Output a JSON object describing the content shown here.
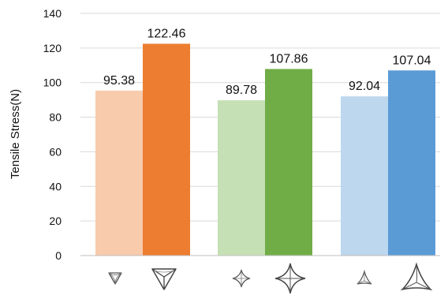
{
  "chart_data": {
    "type": "bar",
    "ylabel": "Tensile Stress(N)",
    "ylim": [
      0,
      140
    ],
    "yticks": [
      0,
      20,
      40,
      60,
      80,
      100,
      120,
      140
    ],
    "grid": "horizontal",
    "legend": "none",
    "groups": [
      {
        "glyph": "triangle-star-icon",
        "bars": [
          {
            "value": 95.38,
            "label": "95.38",
            "color": "#f8cbad"
          },
          {
            "value": 122.46,
            "label": "122.46",
            "color": "#ed7d31"
          }
        ]
      },
      {
        "glyph": "four-point-star-icon",
        "bars": [
          {
            "value": 89.78,
            "label": "89.78",
            "color": "#c5e0b4"
          },
          {
            "value": 107.86,
            "label": "107.86",
            "color": "#70ad47"
          }
        ]
      },
      {
        "glyph": "curved-triangle-icon",
        "bars": [
          {
            "value": 92.04,
            "label": "92.04",
            "color": "#bdd7ee"
          },
          {
            "value": 107.04,
            "label": "107.04",
            "color": "#5b9bd5"
          }
        ]
      }
    ]
  }
}
